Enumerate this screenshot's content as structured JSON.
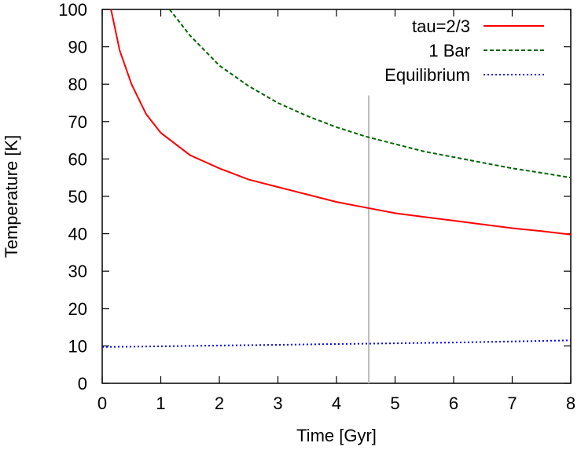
{
  "chart_data": {
    "type": "line",
    "xlabel": "Time [Gyr]",
    "ylabel": "Temperature [K]",
    "xlim": [
      0,
      8
    ],
    "ylim": [
      0,
      100
    ],
    "xticks": [
      "0",
      "1",
      "2",
      "3",
      "4",
      "5",
      "6",
      "7",
      "8"
    ],
    "yticks": [
      "0",
      "10",
      "20",
      "30",
      "40",
      "50",
      "60",
      "70",
      "80",
      "90",
      "100"
    ],
    "grid": false,
    "legend_position": "top-right",
    "reference_line": {
      "x": 4.55,
      "y_range": [
        0,
        77
      ],
      "color": "#bdbdbd"
    },
    "series": [
      {
        "name": "tau=2/3",
        "color": "#ff0000",
        "style": "solid",
        "x": [
          0.15,
          0.3,
          0.5,
          0.75,
          1.0,
          1.5,
          2.0,
          2.5,
          3.0,
          3.5,
          4.0,
          4.5,
          5.0,
          5.5,
          6.0,
          6.5,
          7.0,
          7.5,
          8.0
        ],
        "y": [
          100,
          89,
          80,
          72,
          67,
          61,
          57.5,
          54.5,
          52.5,
          50.5,
          48.5,
          47,
          45.5,
          44.5,
          43.5,
          42.5,
          41.5,
          40.7,
          39.8
        ]
      },
      {
        "name": "1 Bar",
        "color": "#006400",
        "style": "dashed",
        "x": [
          1.15,
          1.5,
          2.0,
          2.5,
          3.0,
          3.5,
          4.0,
          4.5,
          5.0,
          5.5,
          6.0,
          6.5,
          7.0,
          7.5,
          8.0
        ],
        "y": [
          100,
          93,
          85,
          79.5,
          75,
          71.5,
          68.5,
          66,
          64,
          62,
          60.5,
          59,
          57.5,
          56.3,
          55
        ]
      },
      {
        "name": "Equilibrium",
        "color": "#0000ff",
        "style": "dotted",
        "x": [
          0,
          1,
          2,
          3,
          4,
          5,
          6,
          7,
          8
        ],
        "y": [
          9.7,
          9.9,
          10.1,
          10.3,
          10.5,
          10.7,
          10.9,
          11.2,
          11.5
        ]
      }
    ]
  }
}
